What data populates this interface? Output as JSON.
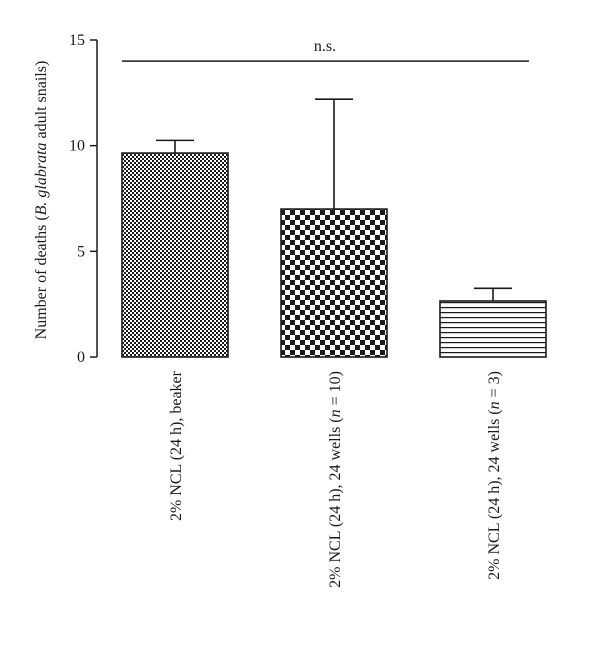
{
  "chart_data": {
    "type": "bar",
    "categories": [
      {
        "parts": [
          {
            "t": "2% NCL (24 h), beaker",
            "i": false
          }
        ]
      },
      {
        "parts": [
          {
            "t": "2% NCL (24 h), 24 wells (",
            "i": false
          },
          {
            "t": "n",
            "i": true
          },
          {
            "t": " = 10)",
            "i": false
          }
        ]
      },
      {
        "parts": [
          {
            "t": "2% NCL (24 h), 24 wells (",
            "i": false
          },
          {
            "t": "n",
            "i": true
          },
          {
            "t": " = 3)",
            "i": false
          }
        ]
      }
    ],
    "values": [
      9.65,
      7.0,
      2.65
    ],
    "errors": [
      0.6,
      5.2,
      0.6
    ],
    "patterns": [
      "fine-checker",
      "coarse-checker",
      "horizontal-stripes"
    ],
    "ylabel_parts": [
      {
        "t": "Number of deaths (",
        "i": false
      },
      {
        "t": "B. glabrata",
        "i": true
      },
      {
        "t": " adult snails)",
        "i": false
      }
    ],
    "ylim": [
      0,
      15
    ],
    "yticks": [
      0,
      5,
      10,
      15
    ],
    "annotation": {
      "text": "n.s.",
      "y": 14.0
    },
    "bar_color": "#1a1a1a",
    "grid": false
  }
}
